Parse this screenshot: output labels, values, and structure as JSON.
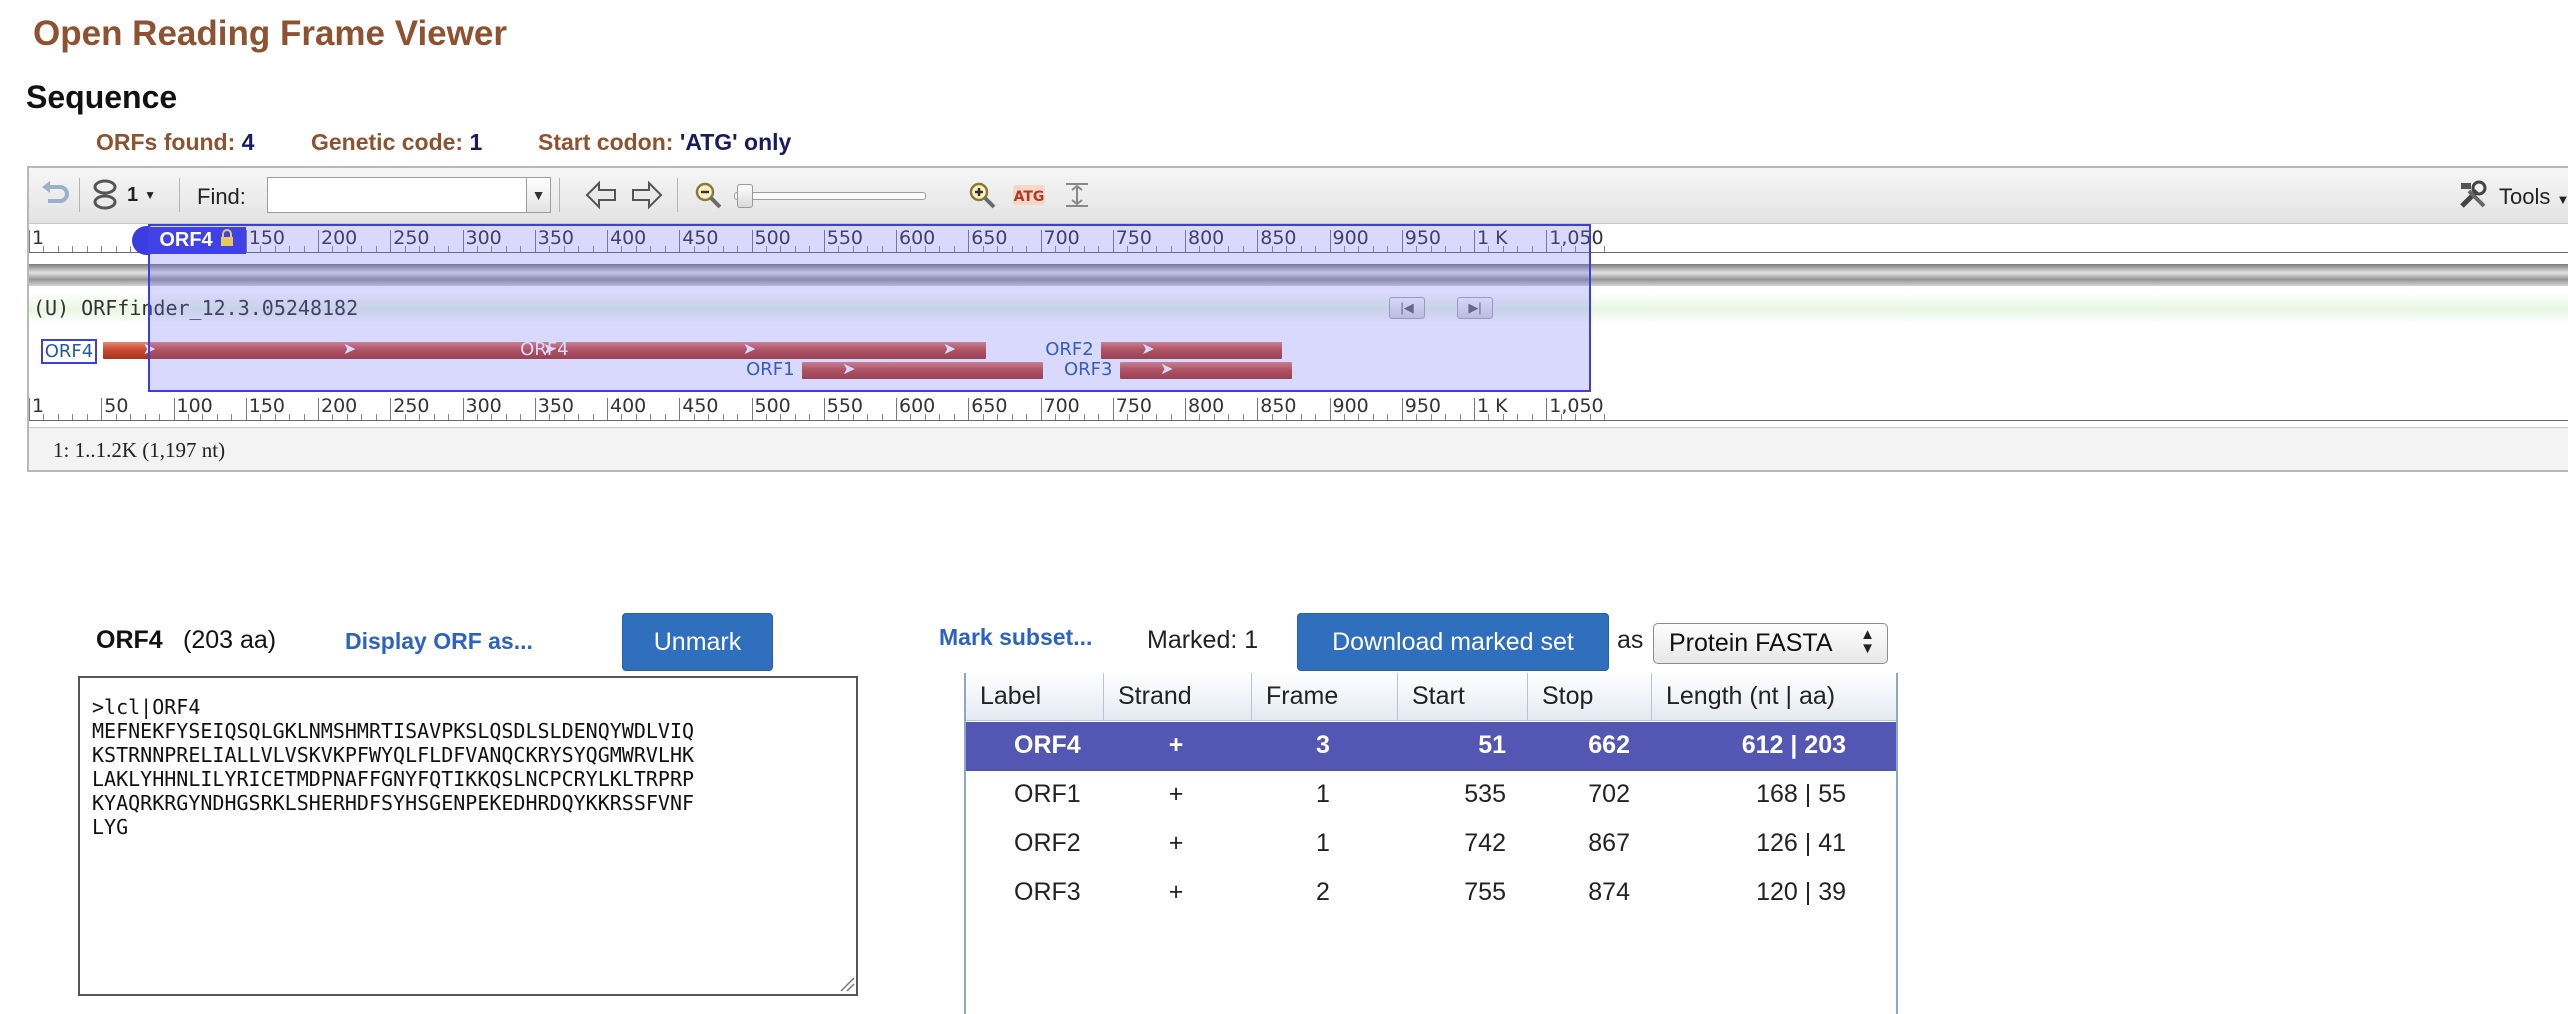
{
  "app_title": "Open Reading Frame Viewer",
  "section_title": "Sequence",
  "stats": [
    {
      "label": "ORFs found:",
      "value": "4"
    },
    {
      "label": "Genetic code:",
      "value": "1"
    },
    {
      "label": "Start codon:",
      "value": "'ATG' only"
    }
  ],
  "toolbar": {
    "undo_icon": "undo-icon",
    "link_icon": "chain-link-icon",
    "link_count": "1",
    "find_label": "Find:",
    "find_value": "",
    "tools_label": "Tools",
    "icons": [
      "undo-icon",
      "chain-link-icon",
      "arrow-left-icon",
      "arrow-right-icon",
      "zoom-out-icon",
      "zoom-in-icon",
      "atg-icon",
      "fit-icon",
      "tools-icon"
    ]
  },
  "ruler": {
    "labels": [
      "1",
      "100",
      "150",
      "200",
      "250",
      "300",
      "350",
      "400",
      "450",
      "500",
      "550",
      "600",
      "650",
      "700",
      "750",
      "800",
      "850",
      "900",
      "950",
      "1 K",
      "1,050"
    ],
    "bottom_labels": [
      "1",
      "50",
      "100",
      "150",
      "200",
      "250",
      "300",
      "350",
      "400",
      "450",
      "500",
      "550",
      "600",
      "650",
      "700",
      "750",
      "800",
      "850",
      "900",
      "950",
      "1 K",
      "1,050"
    ],
    "selected_tag": "ORF4"
  },
  "track": {
    "title": "(U) ORFfinder_12.3.05248182",
    "features": [
      {
        "label": "ORF4",
        "start": 51,
        "stop": 662,
        "selected": true
      },
      {
        "label": "ORF1",
        "start": 535,
        "stop": 702
      },
      {
        "label": "ORF2",
        "start": 742,
        "stop": 867
      },
      {
        "label": "ORF3",
        "start": 755,
        "stop": 874
      }
    ],
    "mid_label": "ORF4"
  },
  "status": "1: 1..1.2K (1,197 nt)",
  "orf_panel": {
    "name": "ORF4",
    "aa": "(203 aa)",
    "display_as": "Display ORF as...",
    "unmark": "Unmark",
    "sequence": ">lcl|ORF4\nMEFNEKFYSEIQSQLGKLNMSHMRTISAVPKSLQSDLSLDENQYWDLVIQ\nKSTRNNPRELIALLVLVSKVKPFWYQLFLDFVANQCKRYSYQGMWRVLHK\nLAKLYHHNLILYRICETMDPNAFFGNYFQTIKKQSLNCPCRYLKLTRPRP\nKYAQRKRGYNDHGSRKLSHERHDFSYHSGENPEKEDHRDQYKKRSSFVNF\nLYG"
  },
  "marked": {
    "mark_subset": "Mark subset...",
    "marked_label": "Marked: 1",
    "download": "Download marked set",
    "as": "as",
    "format": "Protein FASTA"
  },
  "table": {
    "columns": [
      "Label",
      "Strand",
      "Frame",
      "Start",
      "Stop",
      "Length (nt | aa)"
    ],
    "rows": [
      {
        "label": "ORF4",
        "strand": "+",
        "frame": "3",
        "start": "51",
        "stop": "662",
        "length": "612 | 203",
        "selected": true
      },
      {
        "label": "ORF1",
        "strand": "+",
        "frame": "1",
        "start": "535",
        "stop": "702",
        "length": "168 | 55"
      },
      {
        "label": "ORF2",
        "strand": "+",
        "frame": "1",
        "start": "742",
        "stop": "867",
        "length": "126 | 41"
      },
      {
        "label": "ORF3",
        "strand": "+",
        "frame": "2",
        "start": "755",
        "stop": "874",
        "length": "120 | 39"
      }
    ]
  },
  "colors": {
    "title": "#8f5230",
    "accent_blue": "#2f6fbe",
    "selection": "#4141e8",
    "feature": "#c94a32",
    "row_selected": "#5356b2"
  }
}
